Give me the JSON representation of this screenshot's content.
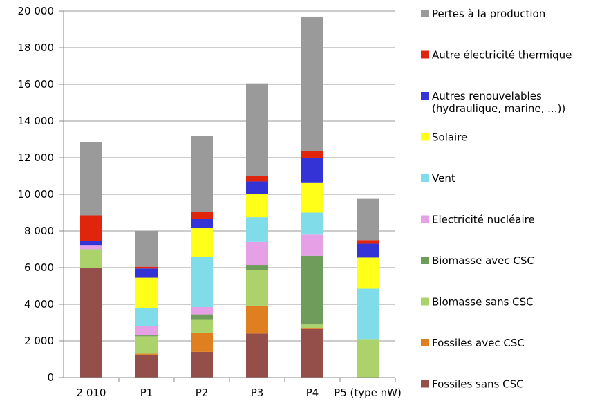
{
  "chart_data": {
    "type": "bar",
    "stacked": true,
    "title": "",
    "xlabel": "",
    "ylabel": "",
    "ylim": [
      0,
      20000
    ],
    "yticks": [
      "0",
      "2 000",
      "4 000",
      "6 000",
      "8 000",
      "10 000",
      "12 000",
      "14 000",
      "16 000",
      "18 000",
      "20 000"
    ],
    "grid": true,
    "legend_position": "right",
    "categories": [
      "2 010",
      "P1",
      "P2",
      "P3",
      "P4",
      "P5 (type nW)"
    ],
    "series": [
      {
        "name": "Fossiles sans CSC",
        "color": "#954f4b",
        "values": [
          6000,
          1250,
          1400,
          2400,
          2650,
          0
        ]
      },
      {
        "name": "Fossiles avec CSC",
        "color": "#e07f1f",
        "values": [
          0,
          50,
          1050,
          1500,
          50,
          0
        ]
      },
      {
        "name": "Biomasse sans CSC",
        "color": "#abd26b",
        "values": [
          1000,
          950,
          700,
          1950,
          200,
          2100
        ]
      },
      {
        "name": "Biomasse avec CSC",
        "color": "#6e9c5b",
        "values": [
          0,
          50,
          300,
          300,
          3750,
          0
        ]
      },
      {
        "name": "Electricité nucléaire",
        "color": "#e6a0e6",
        "values": [
          200,
          500,
          400,
          1250,
          1150,
          0
        ]
      },
      {
        "name": "Vent",
        "color": "#7fdce8",
        "values": [
          0,
          1000,
          2750,
          1350,
          1200,
          2750
        ]
      },
      {
        "name": "Solaire",
        "color": "#ffff1a",
        "values": [
          0,
          1650,
          1550,
          1250,
          1650,
          1700
        ]
      },
      {
        "name": "Autres renouvelables\n(hydraulique, marine, ...))",
        "color": "#3333d6",
        "values": [
          250,
          500,
          500,
          700,
          1350,
          750
        ]
      },
      {
        "name": "Autre électricité thermique",
        "color": "#e0250c",
        "values": [
          1400,
          100,
          400,
          300,
          350,
          200
        ]
      },
      {
        "name": "Pertes à la production",
        "color": "#9a9a9a",
        "values": [
          4000,
          1950,
          4150,
          5050,
          7350,
          2250
        ]
      }
    ]
  }
}
